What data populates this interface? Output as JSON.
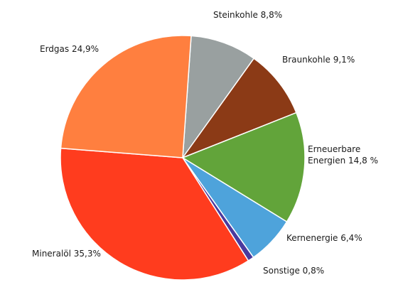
{
  "chart_data": {
    "type": "pie",
    "title": "",
    "start_angle_deg": 86,
    "direction": "clockwise",
    "slices": [
      {
        "label_lines": [
          "Steinkohle 8,8%"
        ],
        "value": 8.8,
        "color": "#99A0A0"
      },
      {
        "label_lines": [
          "Braunkohle 9,1%"
        ],
        "value": 9.1,
        "color": "#8B3A16"
      },
      {
        "label_lines": [
          "Erneuerbare",
          "Energien 14,8 %"
        ],
        "value": 14.8,
        "color": "#62A43A"
      },
      {
        "label_lines": [
          "Kernenergie 6,4%"
        ],
        "value": 6.4,
        "color": "#4EA3DB"
      },
      {
        "label_lines": [
          "Sonstige 0,8%"
        ],
        "value": 0.8,
        "color": "#4A3A9E"
      },
      {
        "label_lines": [
          "Mineralöl 35,3%"
        ],
        "value": 35.3,
        "color": "#FF3C1E"
      },
      {
        "label_lines": [
          "Erdgas 24,9%"
        ],
        "value": 24.9,
        "color": "#FF7F3F"
      }
    ]
  }
}
